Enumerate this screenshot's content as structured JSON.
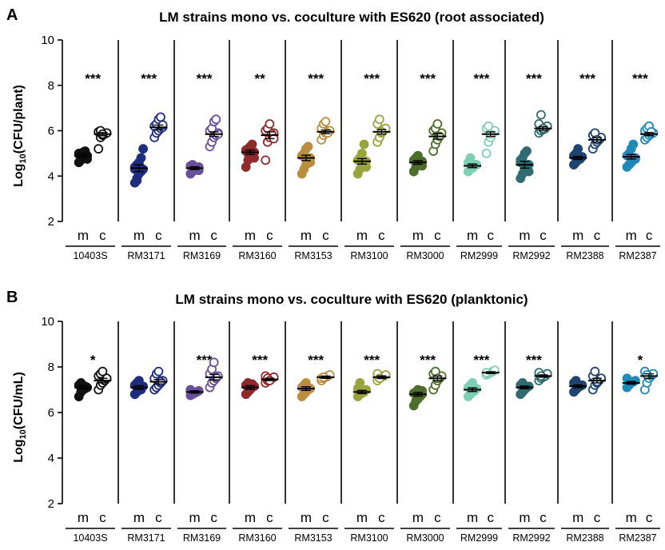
{
  "panel_labels": [
    "A",
    "B"
  ],
  "chart_data": [
    {
      "type": "scatter",
      "title": "LM strains mono vs. coculture with ES620 (root associated)",
      "ylabel_main": "Log",
      "ylabel_sub": "10",
      "ylabel_tail": "(CFU/plant)",
      "ylim": [
        2,
        10
      ],
      "yticks": [
        2,
        4,
        6,
        8,
        10
      ],
      "condition_labels": [
        "m",
        "c"
      ],
      "strains": [
        {
          "name": "10403S",
          "color": "#111111",
          "sig": "***",
          "mono_mean": 4.9,
          "mono_sem": 0.1,
          "co_mean": 5.85,
          "co_sem": 0.07,
          "mono": [
            4.6,
            4.7,
            4.8,
            4.85,
            4.9,
            4.95,
            5.0,
            5.05,
            5.1,
            4.75,
            5.0,
            4.9
          ],
          "co": [
            5.2,
            5.7,
            5.8,
            5.85,
            5.9,
            5.95,
            6.0,
            5.85
          ]
        },
        {
          "name": "RM3171",
          "color": "#1f2d7d",
          "sig": "***",
          "mono_mean": 4.35,
          "mono_sem": 0.15,
          "co_mean": 6.15,
          "co_sem": 0.1,
          "mono": [
            3.7,
            3.9,
            4.1,
            4.2,
            4.3,
            4.4,
            4.5,
            4.6,
            4.8,
            5.2,
            4.3,
            3.8
          ],
          "co": [
            5.7,
            5.9,
            6.0,
            6.1,
            6.15,
            6.2,
            6.3,
            6.5,
            6.6,
            6.25
          ]
        },
        {
          "name": "RM3169",
          "color": "#6a4f9a",
          "sig": "***",
          "mono_mean": 4.35,
          "mono_sem": 0.06,
          "co_mean": 5.85,
          "co_sem": 0.1,
          "mono": [
            4.1,
            4.2,
            4.3,
            4.35,
            4.4,
            4.45,
            4.5,
            4.3,
            4.35,
            4.25
          ],
          "co": [
            5.3,
            5.5,
            5.7,
            5.8,
            5.9,
            6.0,
            6.1,
            6.4,
            6.5,
            5.85
          ]
        },
        {
          "name": "RM3160",
          "color": "#8e2a2a",
          "sig": "**",
          "mono_mean": 5.05,
          "mono_sem": 0.1,
          "co_mean": 5.8,
          "co_sem": 0.15,
          "mono": [
            4.4,
            4.7,
            4.9,
            5.0,
            5.05,
            5.1,
            5.2,
            5.3,
            5.4,
            4.8,
            5.15,
            5.0
          ],
          "co": [
            4.7,
            5.5,
            5.7,
            5.8,
            5.9,
            6.0,
            6.1,
            6.3,
            5.85,
            5.65
          ]
        },
        {
          "name": "RM3153",
          "color": "#b98f3e",
          "sig": "***",
          "mono_mean": 4.8,
          "mono_sem": 0.12,
          "co_mean": 5.95,
          "co_sem": 0.08,
          "mono": [
            4.1,
            4.3,
            4.5,
            4.7,
            4.8,
            4.9,
            5.0,
            5.2,
            5.3,
            4.6
          ],
          "co": [
            5.6,
            5.8,
            5.9,
            5.95,
            6.0,
            6.1,
            6.3,
            6.4,
            5.9
          ]
        },
        {
          "name": "RM3100",
          "color": "#9aa43c",
          "sig": "***",
          "mono_mean": 4.65,
          "mono_sem": 0.12,
          "co_mean": 5.95,
          "co_sem": 0.1,
          "mono": [
            4.1,
            4.3,
            4.5,
            4.6,
            4.65,
            4.7,
            4.8,
            5.0,
            5.4,
            4.4
          ],
          "co": [
            5.5,
            5.7,
            5.9,
            6.0,
            6.1,
            6.3,
            6.5,
            5.95
          ]
        },
        {
          "name": "RM3000",
          "color": "#4d6e2a",
          "sig": "***",
          "mono_mean": 4.6,
          "mono_sem": 0.08,
          "co_mean": 5.75,
          "co_sem": 0.12,
          "mono": [
            4.2,
            4.4,
            4.5,
            4.6,
            4.65,
            4.7,
            4.8,
            4.9,
            4.55,
            4.45
          ],
          "co": [
            5.1,
            5.4,
            5.6,
            5.8,
            5.9,
            6.0,
            6.1,
            6.3,
            5.75
          ]
        },
        {
          "name": "RM2999",
          "color": "#7ed0b4",
          "sig": "***",
          "mono_mean": 4.45,
          "mono_sem": 0.08,
          "co_mean": 5.85,
          "co_sem": 0.1,
          "mono": [
            4.2,
            4.3,
            4.4,
            4.45,
            4.5,
            4.6,
            4.8,
            4.35,
            4.5
          ],
          "co": [
            5.0,
            5.5,
            5.7,
            5.9,
            6.0,
            6.1,
            6.2,
            5.85
          ]
        },
        {
          "name": "RM2992",
          "color": "#2f6b70",
          "sig": "***",
          "mono_mean": 4.5,
          "mono_sem": 0.15,
          "co_mean": 6.1,
          "co_sem": 0.08,
          "mono": [
            3.9,
            4.1,
            4.3,
            4.4,
            4.5,
            4.6,
            4.8,
            5.0,
            5.1,
            4.2,
            4.7
          ],
          "co": [
            5.9,
            6.0,
            6.05,
            6.1,
            6.2,
            6.3,
            6.7,
            6.1
          ]
        },
        {
          "name": "RM2388",
          "color": "#1e4470",
          "sig": "***",
          "mono_mean": 4.8,
          "mono_sem": 0.07,
          "co_mean": 5.6,
          "co_sem": 0.1,
          "mono": [
            4.5,
            4.6,
            4.7,
            4.8,
            4.85,
            4.9,
            5.0,
            5.2,
            4.75
          ],
          "co": [
            5.2,
            5.4,
            5.5,
            5.6,
            5.7,
            5.8,
            5.9,
            5.6
          ]
        },
        {
          "name": "RM2387",
          "color": "#1f8ab8",
          "sig": "***",
          "mono_mean": 4.85,
          "mono_sem": 0.1,
          "co_mean": 5.85,
          "co_sem": 0.07,
          "mono": [
            4.4,
            4.5,
            4.6,
            4.7,
            4.8,
            4.9,
            5.0,
            5.2,
            5.4,
            4.75
          ],
          "co": [
            5.6,
            5.7,
            5.8,
            5.85,
            5.9,
            6.0,
            6.1,
            6.2,
            5.95
          ]
        }
      ]
    },
    {
      "type": "scatter",
      "title": "LM strains mono vs. coculture with ES620 (planktonic)",
      "ylabel_main": "Log",
      "ylabel_sub": "10",
      "ylabel_tail": "(CFU/mL)",
      "ylim": [
        2,
        10
      ],
      "yticks": [
        2,
        4,
        6,
        8,
        10
      ],
      "condition_labels": [
        "m",
        "c"
      ],
      "strains": [
        {
          "name": "10403S",
          "color": "#111111",
          "sig": "*",
          "mono_mean": 7.1,
          "mono_sem": 0.08,
          "co_mean": 7.4,
          "co_sem": 0.1,
          "mono": [
            6.7,
            6.9,
            7.0,
            7.05,
            7.1,
            7.2,
            7.3,
            7.0,
            7.15
          ],
          "co": [
            7.0,
            7.2,
            7.3,
            7.4,
            7.5,
            7.6,
            7.7,
            7.8
          ]
        },
        {
          "name": "RM3171",
          "color": "#1f2d7d",
          "sig": "",
          "mono_mean": 7.1,
          "mono_sem": 0.08,
          "co_mean": 7.35,
          "co_sem": 0.1,
          "mono": [
            6.8,
            6.9,
            7.0,
            7.1,
            7.15,
            7.2,
            7.3,
            7.4,
            7.0
          ],
          "co": [
            7.0,
            7.1,
            7.2,
            7.3,
            7.4,
            7.5,
            7.7,
            7.8,
            7.35
          ]
        },
        {
          "name": "RM3169",
          "color": "#6a4f9a",
          "sig": "***",
          "mono_mean": 6.9,
          "mono_sem": 0.05,
          "co_mean": 7.55,
          "co_sem": 0.12,
          "mono": [
            6.75,
            6.8,
            6.85,
            6.9,
            6.95,
            7.0,
            6.9
          ],
          "co": [
            7.1,
            7.3,
            7.4,
            7.5,
            7.6,
            7.7,
            7.9,
            8.2,
            7.55
          ]
        },
        {
          "name": "RM3160",
          "color": "#8e2a2a",
          "sig": "***",
          "mono_mean": 7.1,
          "mono_sem": 0.08,
          "co_mean": 7.45,
          "co_sem": 0.05,
          "mono": [
            6.8,
            6.9,
            7.0,
            7.1,
            7.15,
            7.2,
            7.3,
            7.0,
            7.25
          ],
          "co": [
            7.3,
            7.4,
            7.45,
            7.5,
            7.55,
            7.6,
            7.5,
            7.4
          ]
        },
        {
          "name": "RM3153",
          "color": "#b98f3e",
          "sig": "***",
          "mono_mean": 7.05,
          "mono_sem": 0.08,
          "co_mean": 7.55,
          "co_sem": 0.05,
          "mono": [
            6.7,
            6.8,
            6.9,
            7.0,
            7.05,
            7.1,
            7.2,
            7.3,
            7.0
          ],
          "co": [
            7.4,
            7.5,
            7.55,
            7.6,
            7.65,
            7.5,
            7.55
          ]
        },
        {
          "name": "RM3100",
          "color": "#9aa43c",
          "sig": "***",
          "mono_mean": 6.9,
          "mono_sem": 0.07,
          "co_mean": 7.55,
          "co_sem": 0.06,
          "mono": [
            6.7,
            6.8,
            6.85,
            6.9,
            7.0,
            7.05,
            7.3,
            6.9
          ],
          "co": [
            7.4,
            7.5,
            7.55,
            7.6,
            7.65,
            7.7,
            7.5
          ]
        },
        {
          "name": "RM3000",
          "color": "#4d6e2a",
          "sig": "***",
          "mono_mean": 6.8,
          "mono_sem": 0.08,
          "co_mean": 7.5,
          "co_sem": 0.1,
          "mono": [
            6.3,
            6.5,
            6.6,
            6.7,
            6.8,
            6.85,
            6.9,
            7.0,
            6.75,
            6.95
          ],
          "co": [
            7.0,
            7.2,
            7.4,
            7.5,
            7.6,
            7.7,
            7.8,
            7.5
          ]
        },
        {
          "name": "RM2999",
          "color": "#7ed0b4",
          "sig": "***",
          "mono_mean": 7.0,
          "mono_sem": 0.08,
          "co_mean": 7.75,
          "co_sem": 0.04,
          "mono": [
            6.7,
            6.8,
            6.9,
            7.0,
            7.05,
            7.1,
            7.2,
            7.3,
            6.95
          ],
          "co": [
            7.65,
            7.7,
            7.75,
            7.8,
            7.85,
            7.75
          ]
        },
        {
          "name": "RM2992",
          "color": "#2f6b70",
          "sig": "***",
          "mono_mean": 7.1,
          "mono_sem": 0.06,
          "co_mean": 7.6,
          "co_sem": 0.05,
          "mono": [
            6.8,
            6.9,
            7.0,
            7.1,
            7.15,
            7.2,
            7.3,
            7.05
          ],
          "co": [
            7.4,
            7.5,
            7.55,
            7.6,
            7.7,
            7.75,
            7.6
          ]
        },
        {
          "name": "RM2388",
          "color": "#1e4470",
          "sig": "",
          "mono_mean": 7.15,
          "mono_sem": 0.06,
          "co_mean": 7.4,
          "co_sem": 0.1,
          "mono": [
            6.9,
            7.0,
            7.1,
            7.15,
            7.2,
            7.3,
            7.4,
            7.1
          ],
          "co": [
            7.0,
            7.2,
            7.3,
            7.4,
            7.5,
            7.6,
            7.8,
            7.35
          ]
        },
        {
          "name": "RM2387",
          "color": "#1f8ab8",
          "sig": "*",
          "mono_mean": 7.3,
          "mono_sem": 0.06,
          "co_mean": 7.6,
          "co_sem": 0.1,
          "mono": [
            7.1,
            7.2,
            7.3,
            7.35,
            7.4,
            7.5,
            7.3
          ],
          "co": [
            7.0,
            7.3,
            7.5,
            7.6,
            7.7,
            7.8,
            7.65
          ]
        }
      ]
    }
  ]
}
